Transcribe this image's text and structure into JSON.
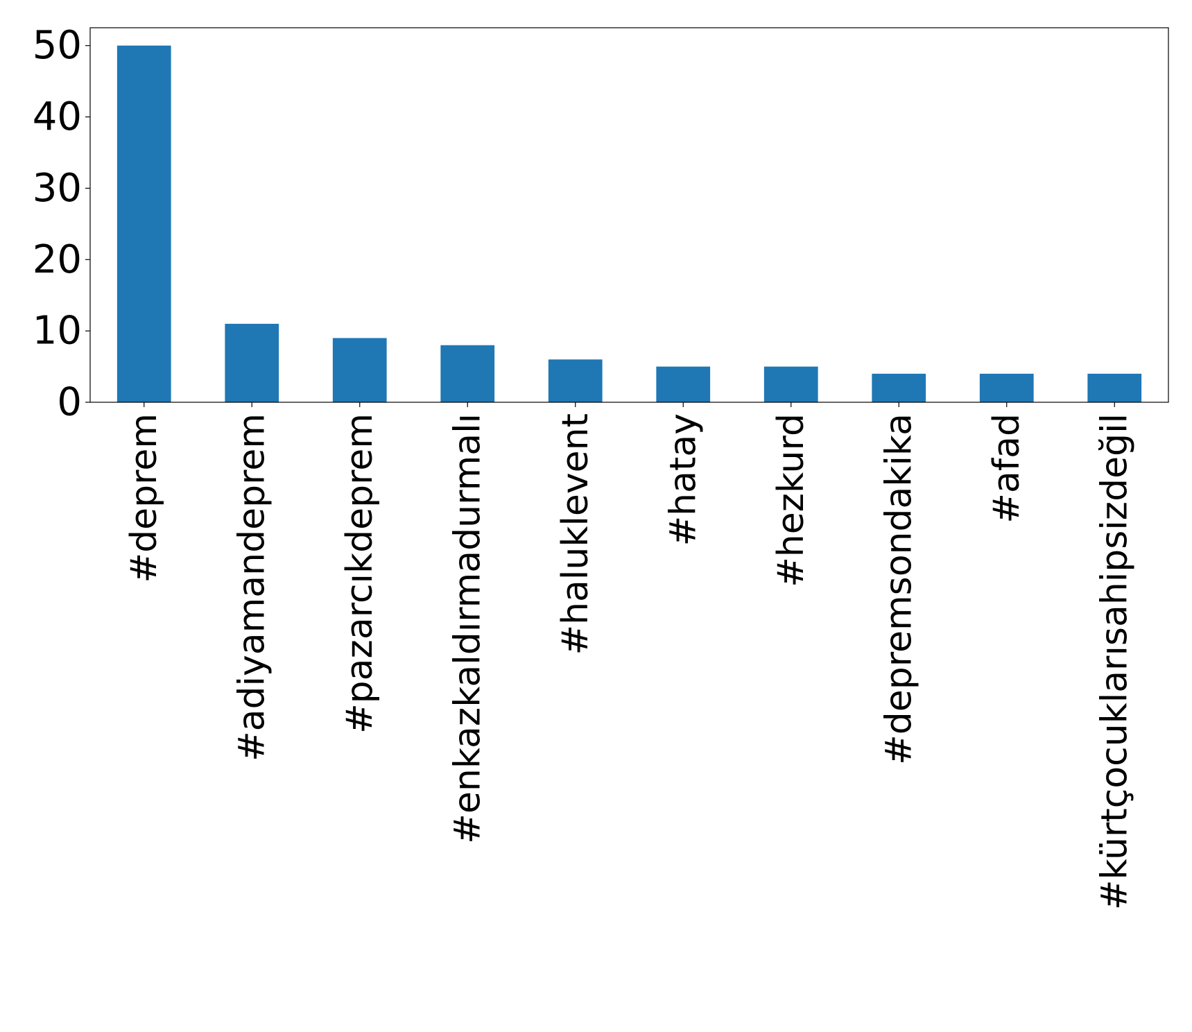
{
  "chart_data": {
    "type": "bar",
    "title": "",
    "xlabel": "",
    "ylabel": "",
    "categories": [
      "#deprem",
      "#adiyamandeprem",
      "#pazarcıkdeprem",
      "#enkazkaldırmadurmalı",
      "#haluklevent",
      "#hatay",
      "#hezkurd",
      "#depremsondakika",
      "#afad",
      "#kürtçocuklarısahipsizdeğil"
    ],
    "values": [
      50,
      11,
      9,
      8,
      6,
      5,
      5,
      4,
      4,
      4
    ],
    "ylim": [
      0,
      52.5
    ],
    "yticks": [
      0,
      10,
      20,
      30,
      40,
      50
    ],
    "grid": false,
    "bar_color": "#1f77b4"
  }
}
